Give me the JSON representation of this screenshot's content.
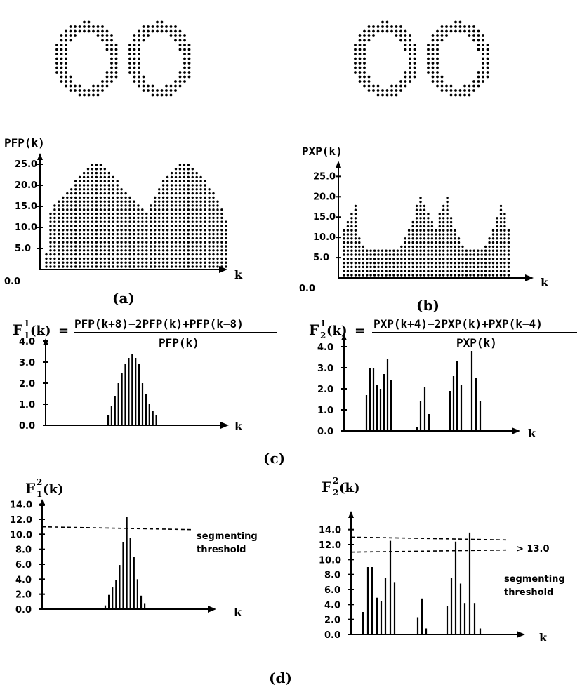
{
  "chart_data": [
    {
      "type": "dot-image",
      "panel": "a",
      "description_note": "",
      "shape": "two adjacent rings (figure-eight)"
    },
    {
      "type": "dot-image",
      "panel": "b",
      "shape": "two adjacent rings (figure-eight)"
    },
    {
      "type": "bar",
      "panel": "a",
      "ylabel": "PFP(k)",
      "xlabel": "k",
      "origin_label": "0.0",
      "yticks": [
        "5.0",
        "10.0",
        "15.0",
        "20.0",
        "25.0"
      ],
      "ylim": [
        0,
        27
      ],
      "values": [
        4,
        14,
        16,
        17,
        18,
        19,
        20,
        21,
        22,
        23,
        24,
        25,
        25,
        25,
        24,
        23,
        22,
        21,
        20,
        19,
        18,
        17,
        16,
        15,
        14,
        16,
        18,
        20,
        21,
        22,
        23,
        24,
        25,
        25,
        25,
        24,
        23,
        22,
        21,
        20,
        19,
        17,
        15,
        12
      ]
    },
    {
      "type": "bar",
      "panel": "b",
      "ylabel": "PXP(k)",
      "xlabel": "k",
      "origin_label": "0.0",
      "yticks": [
        "5.0",
        "10.0",
        "15.0",
        "20.0",
        "25.0"
      ],
      "ylim": [
        0,
        28
      ],
      "values": [
        12,
        14,
        16,
        18,
        10,
        8,
        7,
        7,
        7,
        7,
        7,
        7,
        7,
        7,
        7,
        8,
        10,
        12,
        14,
        18,
        20,
        18,
        16,
        14,
        12,
        16,
        18,
        20,
        15,
        12,
        10,
        8,
        7,
        7,
        7,
        7,
        7,
        8,
        10,
        12,
        15,
        18,
        16,
        12
      ]
    },
    {
      "type": "stem",
      "panel": "c-left",
      "formula_lhs": "F",
      "formula_sup": "1",
      "formula_sub": "1",
      "formula_arg": "(k)",
      "formula_eq": "=",
      "formula_num": "PFP(k+8)−2PFP(k)+PFP(k−8)",
      "formula_den": "PFP(k)",
      "xlabel": "k",
      "yticks": [
        "0.0",
        "1.0",
        "2.0",
        "3.0",
        "4.0"
      ],
      "ylim": [
        0,
        4.5
      ],
      "x_index": [
        0,
        1,
        2,
        3,
        4,
        5,
        6,
        7,
        8,
        9,
        10,
        11,
        12,
        13,
        14
      ],
      "values": [
        0.5,
        0.9,
        1.4,
        2.0,
        2.5,
        2.9,
        3.2,
        3.4,
        3.2,
        2.9,
        2.0,
        1.5,
        1.0,
        0.7,
        0.5
      ]
    },
    {
      "type": "stem",
      "panel": "c-right",
      "formula_lhs": "F",
      "formula_sup": "1",
      "formula_sub": "2",
      "formula_arg": "(k)",
      "formula_eq": "=",
      "formula_num": "PXP(k+4)−2PXP(k)+PXP(k−4)",
      "formula_den": "PXP(k)",
      "xlabel": "k",
      "yticks": [
        "0.0",
        "1.0",
        "2.0",
        "3.0",
        "4.0"
      ],
      "ylim": [
        0,
        4.5
      ],
      "values": [
        1.7,
        3.0,
        3.0,
        2.2,
        2.0,
        2.7,
        3.4,
        2.4,
        0.2,
        1.4,
        2.1,
        0.8,
        1.9,
        2.6,
        3.3,
        2.2,
        3.8,
        2.5,
        1.4
      ]
    },
    {
      "type": "stem",
      "panel": "d-left",
      "formula_lhs": "F",
      "formula_sup": "2",
      "formula_sub": "1",
      "formula_arg": "(k)",
      "xlabel": "k",
      "yticks": [
        "0.0",
        "2.0",
        "4.0",
        "6.0",
        "8.0",
        "10.0",
        "12.0",
        "14.0"
      ],
      "ylim": [
        0,
        15
      ],
      "threshold": 11.0,
      "threshold_label_1": "segmenting",
      "threshold_label_2": "threshold",
      "values": [
        0.5,
        1.9,
        2.9,
        3.9,
        5.9,
        9.0,
        12.3,
        9.5,
        7.0,
        4.0,
        1.8,
        0.8
      ]
    },
    {
      "type": "stem",
      "panel": "d-right",
      "formula_lhs": "F",
      "formula_sup": "2",
      "formula_sub": "2",
      "formula_arg": "(k)",
      "xlabel": "k",
      "yticks": [
        "0.0",
        "2.0",
        "4.0",
        "6.0",
        "8.0",
        "10.0",
        "12.0",
        "14.0"
      ],
      "ylim": [
        0,
        15
      ],
      "threshold": 11.0,
      "upper_line": 13.0,
      "upper_line_label": "> 13.0",
      "threshold_label_1": "segmenting",
      "threshold_label_2": "threshold",
      "values": [
        3.0,
        9.0,
        9.0,
        4.9,
        4.5,
        7.5,
        12.5,
        7.0,
        2.3,
        4.8,
        0.8,
        3.8,
        7.5,
        12.4,
        6.8,
        4.2,
        13.6,
        4.2,
        0.8
      ]
    }
  ],
  "captions": {
    "a": "(a)",
    "b": "(b)",
    "c": "(c)",
    "d": "(d)"
  }
}
